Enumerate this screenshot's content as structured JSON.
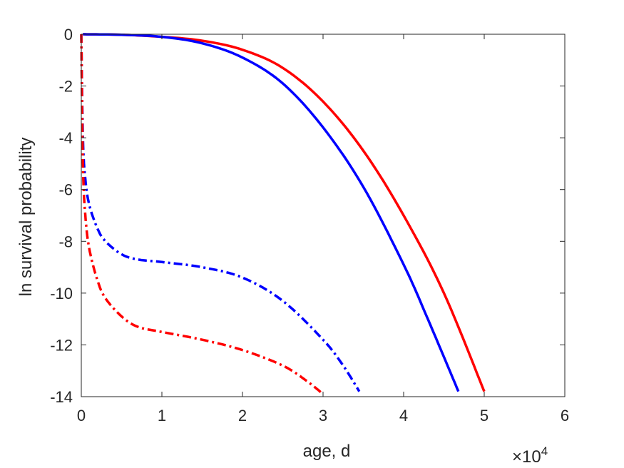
{
  "chart_data": {
    "type": "line",
    "title": "",
    "xlabel": "age, d",
    "ylabel": "ln survival probability",
    "x_multiplier_label": {
      "base": "×10",
      "exponent": "4"
    },
    "xlim": [
      0,
      60000
    ],
    "ylim": [
      -14,
      0
    ],
    "x_ticks": [
      0,
      10000,
      20000,
      30000,
      40000,
      50000,
      60000
    ],
    "x_tick_labels": [
      "0",
      "1",
      "2",
      "3",
      "4",
      "5",
      "6"
    ],
    "y_ticks": [
      0,
      -2,
      -4,
      -6,
      -8,
      -10,
      -12,
      -14
    ],
    "y_tick_labels": [
      "0",
      "-2",
      "-4",
      "-6",
      "-8",
      "-10",
      "-12",
      "-14"
    ],
    "grid": false,
    "series": [
      {
        "color": "#ff0000",
        "style": "solid",
        "x": [
          200,
          5000,
          10000,
          15000,
          20000,
          25000,
          30000,
          35000,
          40000,
          45000,
          50000
        ],
        "y": [
          0,
          -0.02,
          -0.1,
          -0.25,
          -0.6,
          -1.3,
          -2.6,
          -4.5,
          -7.0,
          -10.0,
          -13.8
        ]
      },
      {
        "color": "#0000ff",
        "style": "solid",
        "x": [
          200,
          5000,
          10000,
          15000,
          20000,
          25000,
          30000,
          35000,
          40000,
          43000,
          46800
        ],
        "y": [
          0,
          -0.02,
          -0.1,
          -0.35,
          -0.9,
          -1.9,
          -3.6,
          -5.9,
          -8.9,
          -11.0,
          -13.8
        ]
      },
      {
        "color": "#0000ff",
        "style": "dashdot",
        "x": [
          0,
          200,
          500,
          1000,
          2000,
          3000,
          5000,
          7000,
          10000,
          15000,
          20000,
          25000,
          30000,
          32500,
          34500
        ],
        "y": [
          0,
          -4.0,
          -5.6,
          -6.6,
          -7.5,
          -8.0,
          -8.5,
          -8.7,
          -8.8,
          -9.0,
          -9.4,
          -10.3,
          -11.8,
          -12.8,
          -13.8
        ]
      },
      {
        "color": "#ff0000",
        "style": "dashdot",
        "x": [
          0,
          200,
          500,
          1000,
          2000,
          3000,
          5000,
          7000,
          10000,
          15000,
          20000,
          25000,
          28000,
          30000
        ],
        "y": [
          0,
          -5.0,
          -7.0,
          -8.3,
          -9.5,
          -10.2,
          -10.9,
          -11.3,
          -11.5,
          -11.8,
          -12.2,
          -12.8,
          -13.4,
          -13.9
        ]
      }
    ]
  }
}
